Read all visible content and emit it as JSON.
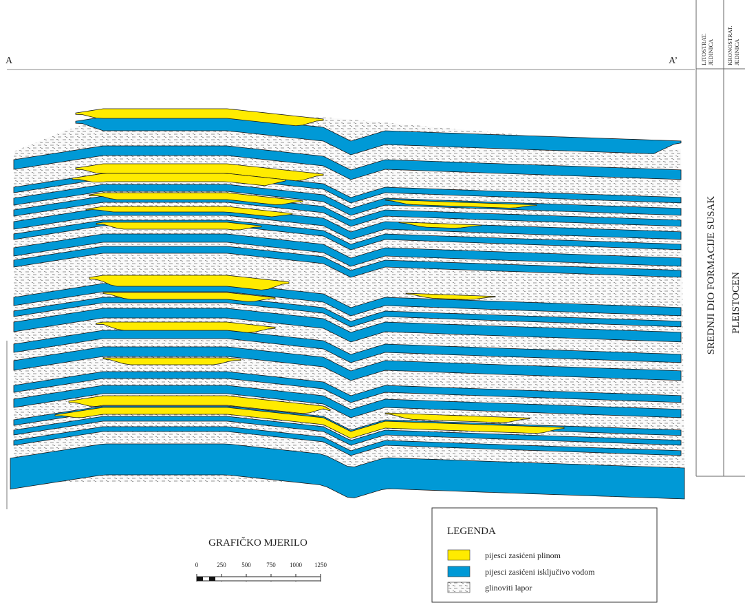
{
  "section": {
    "left_label": "A",
    "right_label": "A’"
  },
  "columns": [
    {
      "lines": [
        "LITOSTRAT.",
        "JEDINICA"
      ],
      "unit": "SREDNJI DIO FORMACIJE SUSAK"
    },
    {
      "lines": [
        "KRONOSTRAT.",
        "JEDINICA"
      ],
      "unit": "PLEISTOCEN"
    }
  ],
  "scale": {
    "title": "GRAFIČKO MJERILO",
    "ticks": [
      0,
      250,
      500,
      750,
      1000,
      1250
    ]
  },
  "legend": {
    "title": "LEGENDA",
    "items": [
      "pijesci zasićeni plinom",
      "pijesci zasićeni isključivo vodom",
      "glinoviti lapor"
    ]
  }
}
